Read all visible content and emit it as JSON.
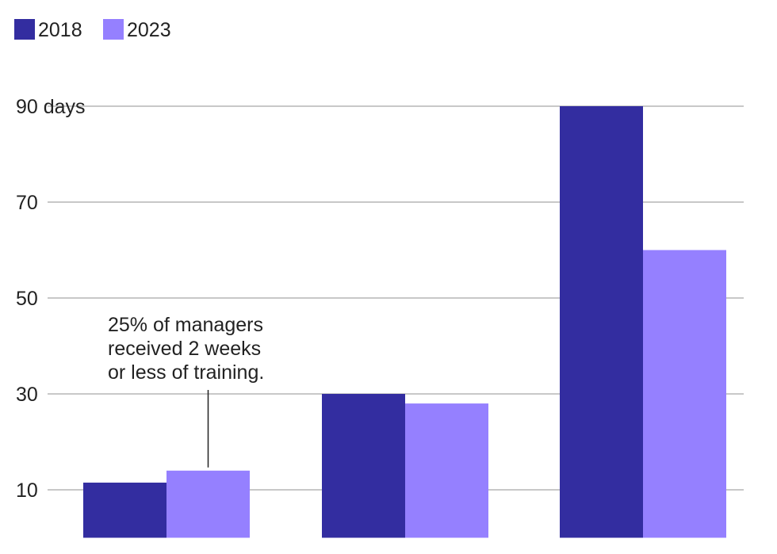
{
  "chart_data": {
    "type": "bar",
    "title": "",
    "xlabel": "",
    "ylabel": "",
    "categories": [
      "",
      "",
      ""
    ],
    "series": [
      {
        "name": "2018",
        "color": "#332da0",
        "values": [
          11.5,
          30,
          90
        ]
      },
      {
        "name": "2023",
        "color": "#9580ff",
        "values": [
          14,
          28,
          60
        ]
      }
    ],
    "yticks": [
      {
        "value": 10,
        "label": "10"
      },
      {
        "value": 30,
        "label": "30"
      },
      {
        "value": 50,
        "label": "50"
      },
      {
        "value": 70,
        "label": "70"
      },
      {
        "value": 90,
        "label": "90 days"
      }
    ],
    "ylim": [
      0,
      90
    ],
    "grid": true,
    "legend_position": "top-left",
    "annotation": {
      "category_index": 0,
      "series_index": 1,
      "lines": [
        "25% of managers",
        "received 2 weeks",
        "or less of training."
      ]
    }
  }
}
